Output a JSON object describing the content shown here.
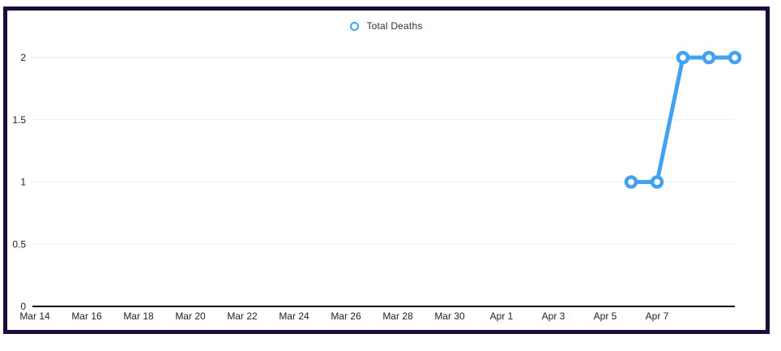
{
  "chart_data": {
    "type": "line",
    "title": "",
    "legend_position": "top",
    "grid": true,
    "series": [
      {
        "name": "Total Deaths",
        "color": "#42a1f2",
        "marker": "hollow-circle",
        "points": [
          {
            "date": "Apr 6",
            "day_offset": 23,
            "value": 1
          },
          {
            "date": "Apr 7",
            "day_offset": 24,
            "value": 1
          },
          {
            "date": "Apr 8",
            "day_offset": 25,
            "value": 2
          },
          {
            "date": "Apr 9",
            "day_offset": 26,
            "value": 2
          },
          {
            "date": "Apr 10",
            "day_offset": 27,
            "value": 2
          }
        ]
      }
    ],
    "x_axis": {
      "range_days": [
        0,
        27
      ],
      "ticks": [
        {
          "label": "Mar 14",
          "day_offset": 0
        },
        {
          "label": "Mar 16",
          "day_offset": 2
        },
        {
          "label": "Mar 18",
          "day_offset": 4
        },
        {
          "label": "Mar 20",
          "day_offset": 6
        },
        {
          "label": "Mar 22",
          "day_offset": 8
        },
        {
          "label": "Mar 24",
          "day_offset": 10
        },
        {
          "label": "Mar 26",
          "day_offset": 12
        },
        {
          "label": "Mar 28",
          "day_offset": 14
        },
        {
          "label": "Mar 30",
          "day_offset": 16
        },
        {
          "label": "Apr 1",
          "day_offset": 18
        },
        {
          "label": "Apr 3",
          "day_offset": 20
        },
        {
          "label": "Apr 5",
          "day_offset": 22
        },
        {
          "label": "Apr 7",
          "day_offset": 24
        }
      ]
    },
    "y_axis": {
      "min": 0,
      "max": 2,
      "ticks": [
        {
          "label": "0",
          "value": 0
        },
        {
          "label": "0.5",
          "value": 0.5
        },
        {
          "label": "1",
          "value": 1
        },
        {
          "label": "1.5",
          "value": 1.5
        },
        {
          "label": "2",
          "value": 2
        }
      ]
    }
  },
  "colors": {
    "series_blue": "#42a1f2",
    "gridline": "#ebebeb",
    "axis_line": "#000000",
    "tick_text": "#222222",
    "legend_text": "#333333",
    "frame_border": "#1b0a3a",
    "background": "#ffffff"
  }
}
